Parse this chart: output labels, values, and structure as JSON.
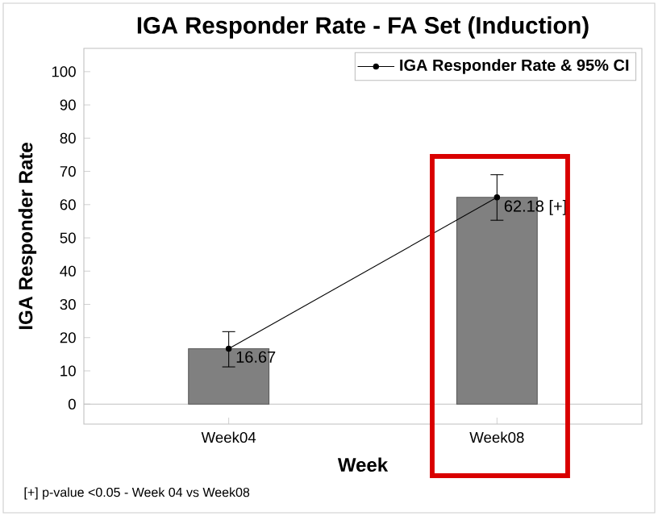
{
  "chart_data": {
    "type": "bar",
    "title": "IGA Responder Rate - FA Set (Induction)",
    "xlabel": "Week",
    "ylabel": "IGA Responder Rate",
    "categories": [
      "Week04",
      "Week08"
    ],
    "series": [
      {
        "color": "#808080",
        "values": [
          16.67,
          62.18
        ]
      },
      {
        "type": "line",
        "name": "IGA Responder Rate & 95% CI",
        "color": "#000000",
        "marker": "circle",
        "values": [
          16.67,
          62.18
        ],
        "errors": [
          [
            11.2,
            21.8
          ],
          [
            55.3,
            69
          ]
        ],
        "value_labels": [
          "16.67",
          "62.18 [+]"
        ]
      }
    ],
    "ylim": [
      -6,
      107
    ],
    "yticks": [
      0,
      10,
      20,
      30,
      40,
      50,
      60,
      70,
      80,
      90,
      100
    ],
    "ref_lines": [
      {
        "axis": "y",
        "value": 0,
        "color": "#c0c0c0"
      }
    ],
    "legend": "top right",
    "grid": false,
    "annotations": [
      "[+] p-value <0.05 - Week 04 vs Week08"
    ]
  }
}
